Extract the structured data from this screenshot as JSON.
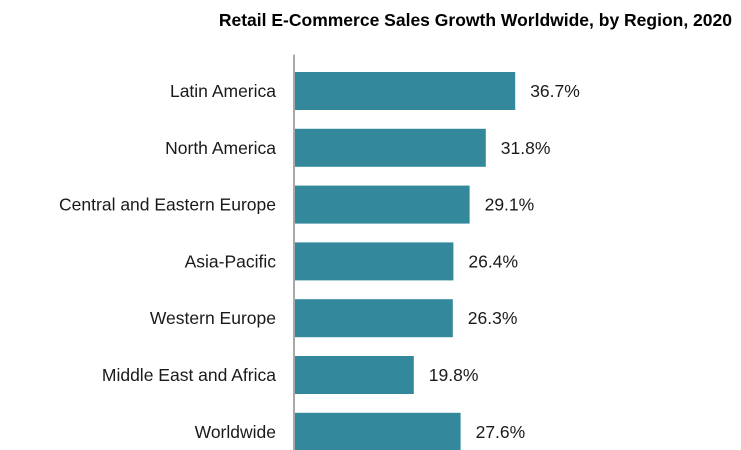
{
  "chart_data": {
    "type": "bar",
    "orientation": "horizontal",
    "title": "Retail E-Commerce Sales Growth Worldwide, by Region, 2020",
    "categories": [
      "Latin America",
      "North America",
      "Central and Eastern Europe",
      "Asia-Pacific",
      "Western Europe",
      "Middle East and Africa",
      "Worldwide"
    ],
    "values": [
      36.7,
      31.8,
      29.1,
      26.4,
      26.3,
      19.8,
      27.6
    ],
    "value_labels": [
      "36.7%",
      "31.8%",
      "29.1%",
      "26.4%",
      "26.3%",
      "19.8%",
      "27.6%"
    ],
    "unit": "%",
    "xlabel": "",
    "ylabel": "",
    "xlim": [
      0,
      40
    ],
    "grid": false,
    "legend": "none",
    "bar_color": "#33889c",
    "axis_color": "#8c8c8c"
  }
}
